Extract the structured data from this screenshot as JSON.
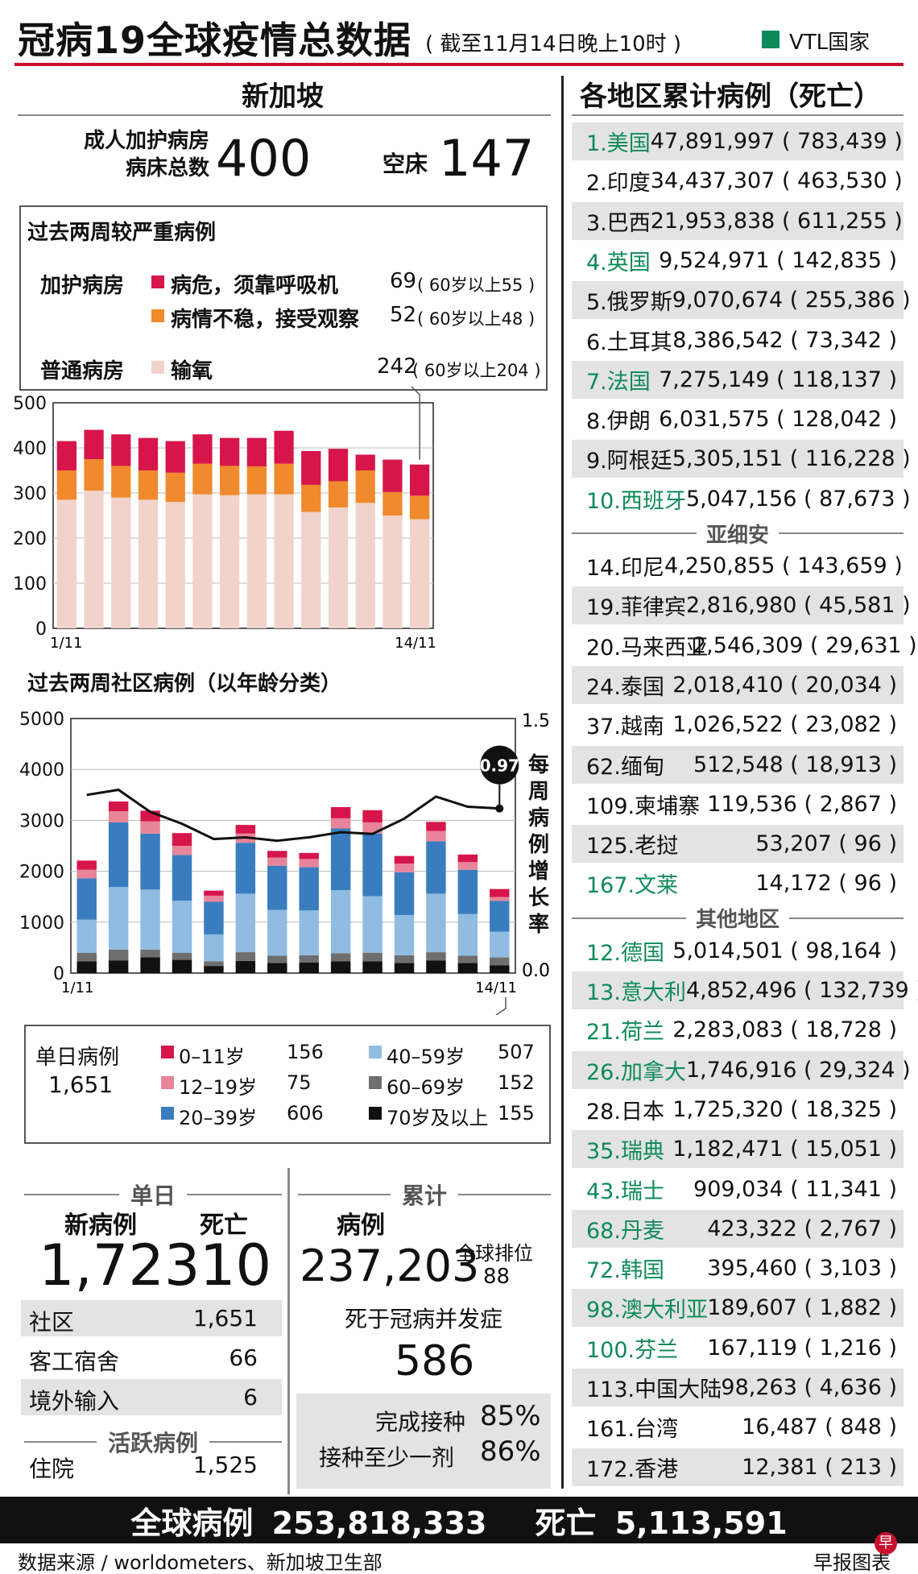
{
  "header": {
    "title": "冠病19全球疫情总数据",
    "date": "( 截至11月14日晚上10时 )",
    "vtl_label": "VTL国家",
    "vtl_color": "#0e8a5a"
  },
  "sg": {
    "title": "新加坡",
    "icu_total_label": "成人加护病房\n病床总数",
    "icu_total_value": "400",
    "empty_label": "空床",
    "empty_value": "147",
    "severe_title": "过去两周较严重病例",
    "icu_label": "加护病房",
    "ward_label": "普通病房",
    "critical_label": "病危，须靠呼吸机",
    "critical_value": "69",
    "critical_note": "( 60岁以上55 )",
    "unstable_label": "病情不稳，接受观察",
    "unstable_value": "52",
    "unstable_note": "( 60岁以上48 )",
    "oxygen_label": "输氧",
    "oxygen_value": "242",
    "oxygen_note": "( 60岁以上204 )",
    "community_title": "过去两周社区病例（以年龄分类）",
    "growth_label": "每周病例增长率",
    "growth_badge": "0.97",
    "daily_label": "单日病例",
    "daily_value": "1,651",
    "age_legend": [
      {
        "label": "0–11岁",
        "value": "156",
        "color": "#d6164b"
      },
      {
        "label": "12–19岁",
        "value": "75",
        "color": "#e8849a"
      },
      {
        "label": "20–39岁",
        "value": "606",
        "color": "#3a7dbf"
      },
      {
        "label": "40–59岁",
        "value": "507",
        "color": "#8fbce0"
      },
      {
        "label": "60–69岁",
        "value": "152",
        "color": "#6e6e6e"
      },
      {
        "label": "70岁及以上",
        "value": "155",
        "color": "#111111"
      }
    ],
    "single_day_title": "单日",
    "new_cases_label": "新病例",
    "new_cases_value": "1,723",
    "deaths_label": "死亡",
    "deaths_value": "10",
    "breakdown": [
      {
        "label": "社区",
        "value": "1,651"
      },
      {
        "label": "客工宿舍",
        "value": "66"
      },
      {
        "label": "境外输入",
        "value": "6"
      }
    ],
    "active_title": "活跃病例",
    "hospital_label": "住院",
    "hospital_value": "1,525",
    "cumulative_title": "累计",
    "cum_cases_label": "病例",
    "cum_cases_value": "237,203",
    "global_rank_label": "全球排位",
    "global_rank_value": "88",
    "complication_label": "死于冠病并发症",
    "complication_value": "586",
    "vacc_full_label": "完成接种",
    "vacc_full_value": "85%",
    "vacc_one_label": "接种至少一剂",
    "vacc_one_value": "86%"
  },
  "regions": {
    "title": "各地区累计病例（死亡）",
    "top": [
      {
        "name": "1.美国",
        "value": "47,891,997 ( 783,439 )",
        "vtl": true
      },
      {
        "name": "2.印度",
        "value": "34,437,307 ( 463,530 )",
        "vtl": false
      },
      {
        "name": "3.巴西",
        "value": "21,953,838 ( 611,255 )",
        "vtl": false
      },
      {
        "name": "4.英国",
        "value": "9,524,971 ( 142,835 )",
        "vtl": true
      },
      {
        "name": "5.俄罗斯",
        "value": "9,070,674 ( 255,386 )",
        "vtl": false
      },
      {
        "name": "6.土耳其",
        "value": "8,386,542 ( 73,342 )",
        "vtl": false
      },
      {
        "name": "7.法国",
        "value": "7,275,149 ( 118,137 )",
        "vtl": true
      },
      {
        "name": "8.伊朗",
        "value": "6,031,575 ( 128,042 )",
        "vtl": false
      },
      {
        "name": "9.阿根廷",
        "value": "5,305,151 ( 116,228 )",
        "vtl": false
      },
      {
        "name": "10.西班牙",
        "value": "5,047,156 ( 87,673 )",
        "vtl": true
      }
    ],
    "asean_title": "亚细安",
    "asean": [
      {
        "name": "14.印尼",
        "value": "4,250,855 ( 143,659 )",
        "vtl": false
      },
      {
        "name": "19.菲律宾",
        "value": "2,816,980 ( 45,581 )",
        "vtl": false
      },
      {
        "name": "20.马来西亚",
        "value": "2,546,309 ( 29,631 )",
        "vtl": false
      },
      {
        "name": "24.泰国",
        "value": "2,018,410 ( 20,034 )",
        "vtl": false
      },
      {
        "name": "37.越南",
        "value": "1,026,522 ( 23,082 )",
        "vtl": false
      },
      {
        "name": "62.缅甸",
        "value": "512,548 ( 18,913 )",
        "vtl": false
      },
      {
        "name": "109.柬埔寨",
        "value": "119,536 ( 2,867 )",
        "vtl": false
      },
      {
        "name": "125.老挝",
        "value": "53,207 ( 96 )",
        "vtl": false
      },
      {
        "name": "167.文莱",
        "value": "14,172 ( 96 )",
        "vtl": true
      }
    ],
    "other_title": "其他地区",
    "other": [
      {
        "name": "12.德国",
        "value": "5,014,501 ( 98,164 )",
        "vtl": true
      },
      {
        "name": "13.意大利",
        "value": "4,852,496 ( 132,739 )",
        "vtl": true
      },
      {
        "name": "21.荷兰",
        "value": "2,283,083 ( 18,728 )",
        "vtl": true
      },
      {
        "name": "26.加拿大",
        "value": "1,746,916 ( 29,324 )",
        "vtl": true
      },
      {
        "name": "28.日本",
        "value": "1,725,320 ( 18,325 )",
        "vtl": false
      },
      {
        "name": "35.瑞典",
        "value": "1,182,471 ( 15,051 )",
        "vtl": true
      },
      {
        "name": "43.瑞士",
        "value": "909,034 ( 11,341 )",
        "vtl": true
      },
      {
        "name": "68.丹麦",
        "value": "423,322 ( 2,767 )",
        "vtl": true
      },
      {
        "name": "72.韩国",
        "value": "395,460 ( 3,103 )",
        "vtl": true
      },
      {
        "name": "98.澳大利亚",
        "value": "189,607 ( 1,882 )",
        "vtl": true
      },
      {
        "name": "100.芬兰",
        "value": "167,119 ( 1,216 )",
        "vtl": true
      },
      {
        "name": "113.中国大陆",
        "value": "98,263 ( 4,636 )",
        "vtl": false
      },
      {
        "name": "161.台湾",
        "value": "16,487 ( 848 )",
        "vtl": false
      },
      {
        "name": "172.香港",
        "value": "12,381 ( 213 )",
        "vtl": false
      }
    ]
  },
  "global": {
    "cases_label": "全球病例",
    "cases_value": "253,818,333",
    "deaths_label": "死亡",
    "deaths_value": "5,113,591"
  },
  "footer": {
    "source": "数据来源 / worldometers、新加坡卫生部",
    "credit": "早报图表",
    "badge": "早"
  },
  "chart_data": [
    {
      "type": "bar",
      "stacked": true,
      "categories": [
        "1/11",
        "2/11",
        "3/11",
        "4/11",
        "5/11",
        "6/11",
        "7/11",
        "8/11",
        "9/11",
        "10/11",
        "11/11",
        "12/11",
        "13/11",
        "14/11"
      ],
      "tick_labels": [
        "1/11",
        "14/11"
      ],
      "ylim": [
        0,
        500
      ],
      "yticks": [
        0,
        100,
        200,
        300,
        400,
        500
      ],
      "series": [
        {
          "name": "输氧",
          "color": "#f2d3cb",
          "values": [
            285,
            305,
            290,
            285,
            280,
            297,
            295,
            297,
            297,
            258,
            268,
            278,
            250,
            242
          ]
        },
        {
          "name": "病情不稳，接受观察",
          "color": "#f08a2c",
          "values": [
            65,
            70,
            70,
            65,
            65,
            68,
            65,
            62,
            68,
            60,
            58,
            72,
            52,
            52
          ]
        },
        {
          "name": "病危，须靠呼吸机",
          "color": "#d6164b",
          "values": [
            65,
            65,
            70,
            72,
            70,
            65,
            62,
            63,
            73,
            75,
            72,
            35,
            72,
            69
          ]
        }
      ]
    },
    {
      "type": "bar",
      "stacked": true,
      "categories": [
        "1/11",
        "2/11",
        "3/11",
        "4/11",
        "5/11",
        "6/11",
        "7/11",
        "8/11",
        "9/11",
        "10/11",
        "11/11",
        "12/11",
        "13/11",
        "14/11"
      ],
      "tick_labels": [
        "1/11",
        "14/11"
      ],
      "ylim": [
        0,
        5000
      ],
      "yticks": [
        0,
        1000,
        2000,
        3000,
        4000,
        5000
      ],
      "y2lim": [
        0.0,
        1.5
      ],
      "y2ticks_labels": [
        "0.0",
        "1.5"
      ],
      "series": [
        {
          "name": "70岁及以上",
          "color": "#111111",
          "values": [
            230,
            250,
            310,
            260,
            140,
            240,
            200,
            210,
            230,
            230,
            200,
            250,
            200,
            155
          ]
        },
        {
          "name": "60–69岁",
          "color": "#6e6e6e",
          "values": [
            170,
            210,
            150,
            140,
            90,
            170,
            140,
            140,
            160,
            170,
            150,
            160,
            140,
            152
          ]
        },
        {
          "name": "40–59岁",
          "color": "#8fbce0",
          "values": [
            650,
            1230,
            1180,
            1020,
            530,
            1150,
            900,
            880,
            1240,
            1110,
            790,
            1150,
            820,
            507
          ]
        },
        {
          "name": "20–39岁",
          "color": "#3a7dbf",
          "values": [
            810,
            1270,
            1100,
            900,
            640,
            1000,
            870,
            850,
            1210,
            1230,
            840,
            1030,
            870,
            606
          ]
        },
        {
          "name": "12–19岁",
          "color": "#e8849a",
          "values": [
            170,
            220,
            240,
            180,
            120,
            180,
            160,
            160,
            200,
            220,
            170,
            200,
            150,
            75
          ]
        },
        {
          "name": "0–11岁",
          "color": "#d6164b",
          "values": [
            180,
            190,
            210,
            250,
            100,
            170,
            130,
            120,
            220,
            240,
            150,
            180,
            150,
            156
          ]
        }
      ],
      "line": {
        "name": "每周病例增长率",
        "axis": "y2",
        "values": [
          1.05,
          1.08,
          0.95,
          0.88,
          0.79,
          0.8,
          0.78,
          0.8,
          0.83,
          0.82,
          0.91,
          1.04,
          0.98,
          0.97
        ]
      }
    }
  ]
}
